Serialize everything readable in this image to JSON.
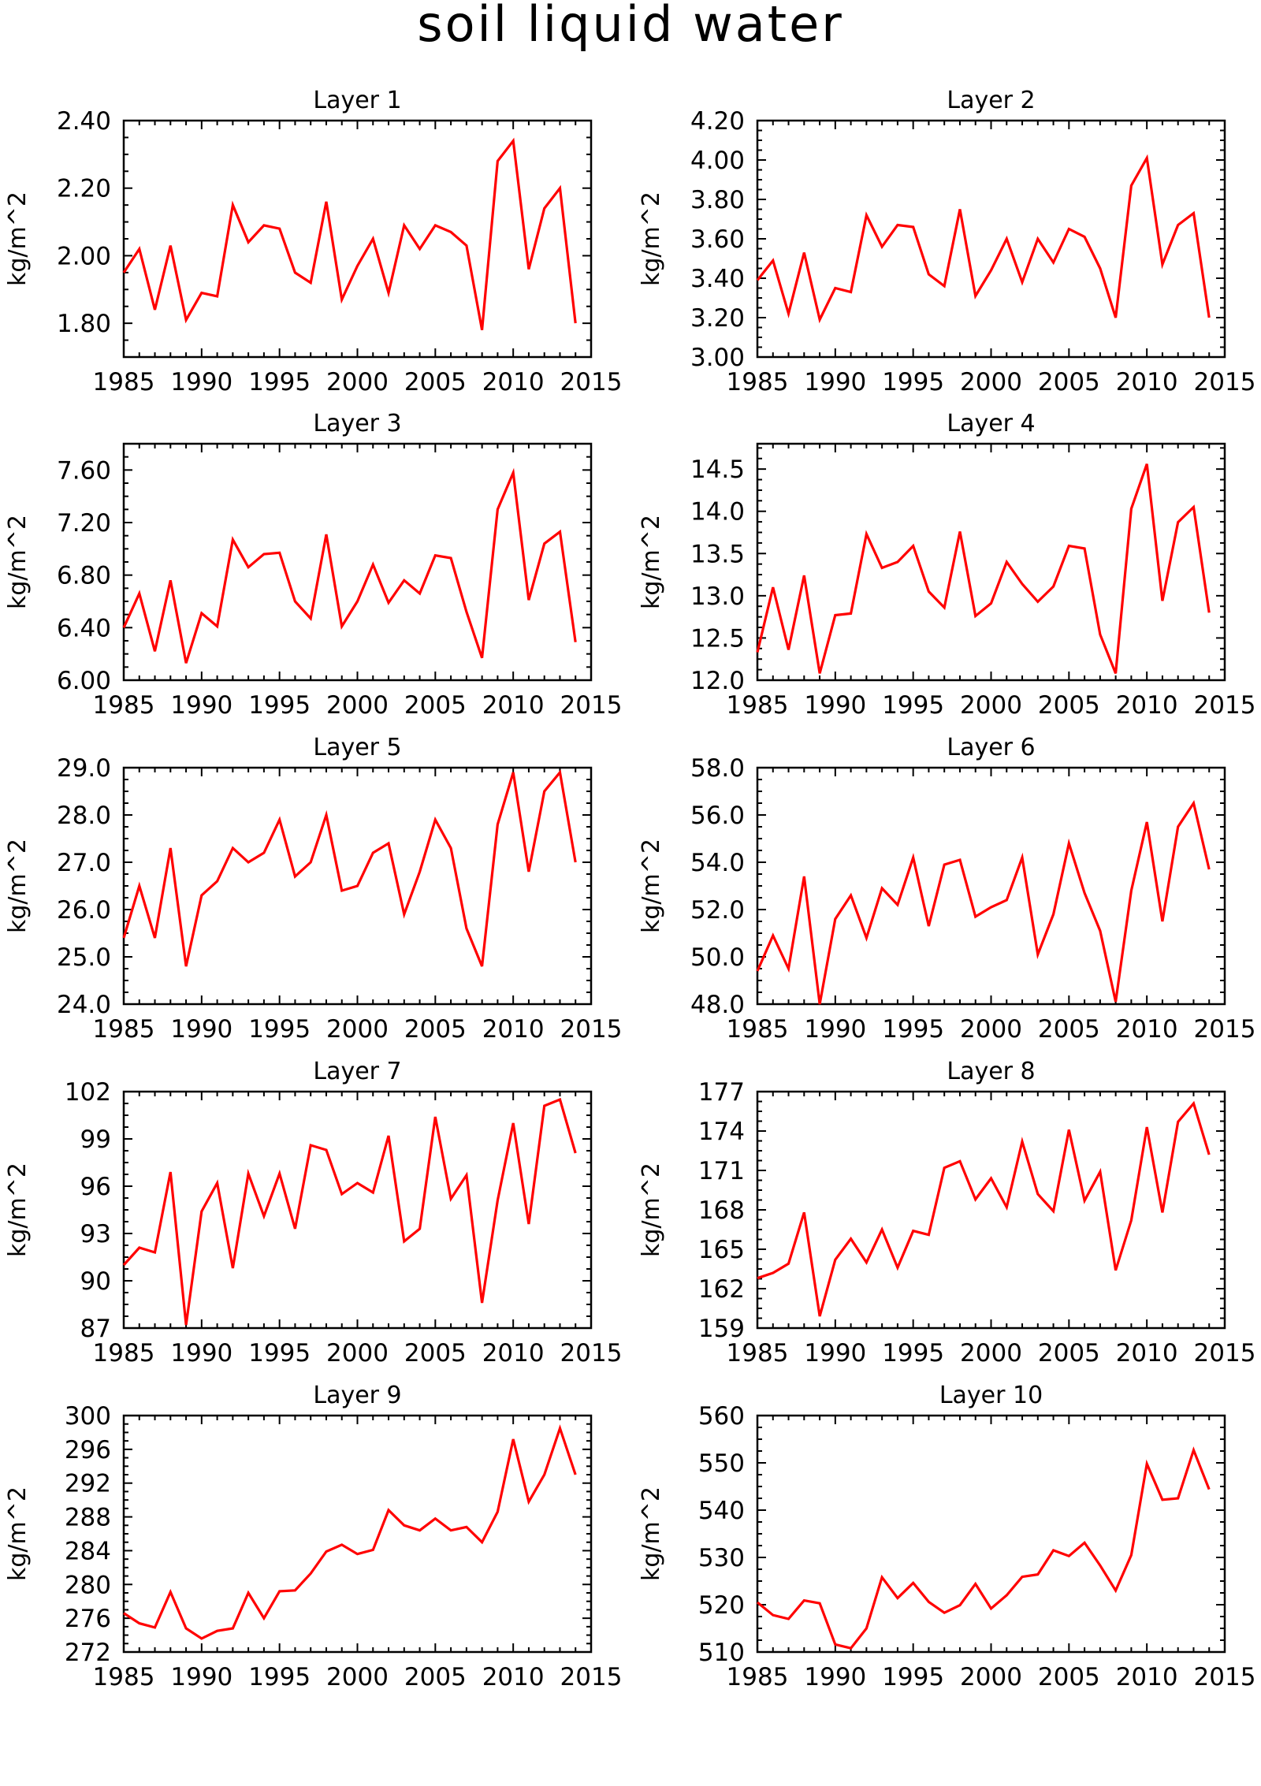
{
  "title": "soil liquid water",
  "colors": {
    "line": "#ff0000",
    "axes": "#000000",
    "background": "#ffffff"
  },
  "chart_data": [
    {
      "type": "line",
      "title": "Layer 1",
      "xlabel": "",
      "ylabel": "kg/m^2",
      "xlim": [
        1985,
        2015
      ],
      "ylim": [
        1.7,
        2.4
      ],
      "xticks": [
        "1985",
        "1990",
        "1995",
        "2000",
        "2005",
        "2010",
        "2015"
      ],
      "yticks": [
        "1.80",
        "2.00",
        "2.20",
        "2.40"
      ],
      "x": [
        1985,
        1986,
        1987,
        1988,
        1989,
        1990,
        1991,
        1992,
        1993,
        1994,
        1995,
        1996,
        1997,
        1998,
        1999,
        2000,
        2001,
        2002,
        2003,
        2004,
        2005,
        2006,
        2007,
        2008,
        2009,
        2010,
        2011,
        2012,
        2013,
        2014
      ],
      "values": [
        1.95,
        2.02,
        1.84,
        2.03,
        1.81,
        1.89,
        1.88,
        2.15,
        2.04,
        2.09,
        2.08,
        1.95,
        1.92,
        2.16,
        1.87,
        1.97,
        2.05,
        1.89,
        2.09,
        2.02,
        2.09,
        2.07,
        2.03,
        1.78,
        2.28,
        2.34,
        1.96,
        2.14,
        2.2,
        1.8
      ]
    },
    {
      "type": "line",
      "title": "Layer 2",
      "xlabel": "",
      "ylabel": "kg/m^2",
      "xlim": [
        1985,
        2015
      ],
      "ylim": [
        3.0,
        4.2
      ],
      "xticks": [
        "1985",
        "1990",
        "1995",
        "2000",
        "2005",
        "2010",
        "2015"
      ],
      "yticks": [
        "3.00",
        "3.20",
        "3.40",
        "3.60",
        "3.80",
        "4.00",
        "4.20"
      ],
      "x": [
        1985,
        1986,
        1987,
        1988,
        1989,
        1990,
        1991,
        1992,
        1993,
        1994,
        1995,
        1996,
        1997,
        1998,
        1999,
        2000,
        2001,
        2002,
        2003,
        2004,
        2005,
        2006,
        2007,
        2008,
        2009,
        2010,
        2011,
        2012,
        2013,
        2014
      ],
      "values": [
        3.39,
        3.49,
        3.22,
        3.53,
        3.19,
        3.35,
        3.33,
        3.72,
        3.56,
        3.67,
        3.66,
        3.42,
        3.36,
        3.75,
        3.31,
        3.44,
        3.6,
        3.38,
        3.6,
        3.48,
        3.65,
        3.61,
        3.45,
        3.2,
        3.87,
        4.01,
        3.47,
        3.67,
        3.73,
        3.2
      ]
    },
    {
      "type": "line",
      "title": "Layer 3",
      "xlabel": "",
      "ylabel": "kg/m^2",
      "xlim": [
        1985,
        2015
      ],
      "ylim": [
        6.0,
        7.8
      ],
      "xticks": [
        "1985",
        "1990",
        "1995",
        "2000",
        "2005",
        "2010",
        "2015"
      ],
      "yticks": [
        "6.00",
        "6.40",
        "6.80",
        "7.20",
        "7.60"
      ],
      "x": [
        1985,
        1986,
        1987,
        1988,
        1989,
        1990,
        1991,
        1992,
        1993,
        1994,
        1995,
        1996,
        1997,
        1998,
        1999,
        2000,
        2001,
        2002,
        2003,
        2004,
        2005,
        2006,
        2007,
        2008,
        2009,
        2010,
        2011,
        2012,
        2013,
        2014
      ],
      "values": [
        6.4,
        6.66,
        6.22,
        6.76,
        6.13,
        6.51,
        6.41,
        7.07,
        6.86,
        6.96,
        6.97,
        6.6,
        6.47,
        7.11,
        6.41,
        6.6,
        6.88,
        6.59,
        6.76,
        6.66,
        6.95,
        6.93,
        6.52,
        6.17,
        7.3,
        7.58,
        6.61,
        7.04,
        7.13,
        6.29
      ]
    },
    {
      "type": "line",
      "title": "Layer 4",
      "xlabel": "",
      "ylabel": "kg/m^2",
      "xlim": [
        1985,
        2015
      ],
      "ylim": [
        12.0,
        14.8
      ],
      "xticks": [
        "1985",
        "1990",
        "1995",
        "2000",
        "2005",
        "2010",
        "2015"
      ],
      "yticks": [
        "12.0",
        "12.5",
        "13.0",
        "13.5",
        "14.0",
        "14.5"
      ],
      "x": [
        1985,
        1986,
        1987,
        1988,
        1989,
        1990,
        1991,
        1992,
        1993,
        1994,
        1995,
        1996,
        1997,
        1998,
        1999,
        2000,
        2001,
        2002,
        2003,
        2004,
        2005,
        2006,
        2007,
        2008,
        2009,
        2010,
        2011,
        2012,
        2013,
        2014
      ],
      "values": [
        12.33,
        13.1,
        12.36,
        13.24,
        12.08,
        12.77,
        12.79,
        13.73,
        13.33,
        13.4,
        13.59,
        13.05,
        12.86,
        13.76,
        12.76,
        12.91,
        13.4,
        13.14,
        12.93,
        13.11,
        13.59,
        13.56,
        12.54,
        12.08,
        14.03,
        14.56,
        12.94,
        13.87,
        14.05,
        12.8
      ]
    },
    {
      "type": "line",
      "title": "Layer 5",
      "xlabel": "",
      "ylabel": "kg/m^2",
      "xlim": [
        1985,
        2015
      ],
      "ylim": [
        24.0,
        29.0
      ],
      "xticks": [
        "1985",
        "1990",
        "1995",
        "2000",
        "2005",
        "2010",
        "2015"
      ],
      "yticks": [
        "24.0",
        "25.0",
        "26.0",
        "27.0",
        "28.0",
        "29.0"
      ],
      "x": [
        1985,
        1986,
        1987,
        1988,
        1989,
        1990,
        1991,
        1992,
        1993,
        1994,
        1995,
        1996,
        1997,
        1998,
        1999,
        2000,
        2001,
        2002,
        2003,
        2004,
        2005,
        2006,
        2007,
        2008,
        2009,
        2010,
        2011,
        2012,
        2013,
        2014
      ],
      "values": [
        25.4,
        26.5,
        25.4,
        27.3,
        24.8,
        26.3,
        26.6,
        27.3,
        27.0,
        27.2,
        27.9,
        26.7,
        27.0,
        28.0,
        26.4,
        26.5,
        27.2,
        27.4,
        25.9,
        26.8,
        27.9,
        27.3,
        25.6,
        24.8,
        27.8,
        28.9,
        26.8,
        28.5,
        28.9,
        27.0
      ]
    },
    {
      "type": "line",
      "title": "Layer 6",
      "xlabel": "",
      "ylabel": "kg/m^2",
      "xlim": [
        1985,
        2015
      ],
      "ylim": [
        48.0,
        58.0
      ],
      "xticks": [
        "1985",
        "1990",
        "1995",
        "2000",
        "2005",
        "2010",
        "2015"
      ],
      "yticks": [
        "48.0",
        "50.0",
        "52.0",
        "54.0",
        "56.0",
        "58.0"
      ],
      "x": [
        1985,
        1986,
        1987,
        1988,
        1989,
        1990,
        1991,
        1992,
        1993,
        1994,
        1995,
        1996,
        1997,
        1998,
        1999,
        2000,
        2001,
        2002,
        2003,
        2004,
        2005,
        2006,
        2007,
        2008,
        2009,
        2010,
        2011,
        2012,
        2013,
        2014
      ],
      "values": [
        49.4,
        50.9,
        49.5,
        53.4,
        48.0,
        51.6,
        52.6,
        50.8,
        52.9,
        52.2,
        54.2,
        51.3,
        53.9,
        54.1,
        51.7,
        52.1,
        52.4,
        54.2,
        50.1,
        51.8,
        54.8,
        52.7,
        51.1,
        48.1,
        52.8,
        55.7,
        51.5,
        55.5,
        56.5,
        53.7
      ]
    },
    {
      "type": "line",
      "title": "Layer 7",
      "xlabel": "",
      "ylabel": "kg/m^2",
      "xlim": [
        1985,
        2015
      ],
      "ylim": [
        87,
        102
      ],
      "xticks": [
        "1985",
        "1990",
        "1995",
        "2000",
        "2005",
        "2010",
        "2015"
      ],
      "yticks": [
        "87",
        "90",
        "93",
        "96",
        "99",
        "102"
      ],
      "x": [
        1985,
        1986,
        1987,
        1988,
        1989,
        1990,
        1991,
        1992,
        1993,
        1994,
        1995,
        1996,
        1997,
        1998,
        1999,
        2000,
        2001,
        2002,
        2003,
        2004,
        2005,
        2006,
        2007,
        2008,
        2009,
        2010,
        2011,
        2012,
        2013,
        2014
      ],
      "values": [
        91.0,
        92.1,
        91.8,
        96.9,
        87.2,
        94.4,
        96.2,
        90.8,
        96.8,
        94.1,
        96.8,
        93.3,
        98.6,
        98.3,
        95.5,
        96.2,
        95.6,
        99.2,
        92.5,
        93.3,
        100.4,
        95.2,
        96.7,
        88.6,
        95.1,
        100.0,
        93.6,
        101.1,
        101.5,
        98.1
      ]
    },
    {
      "type": "line",
      "title": "Layer 8",
      "xlabel": "",
      "ylabel": "kg/m^2",
      "xlim": [
        1985,
        2015
      ],
      "ylim": [
        159,
        177
      ],
      "xticks": [
        "1985",
        "1990",
        "1995",
        "2000",
        "2005",
        "2010",
        "2015"
      ],
      "yticks": [
        "159",
        "162",
        "165",
        "168",
        "171",
        "174",
        "177"
      ],
      "x": [
        1985,
        1986,
        1987,
        1988,
        1989,
        1990,
        1991,
        1992,
        1993,
        1994,
        1995,
        1996,
        1997,
        1998,
        1999,
        2000,
        2001,
        2002,
        2003,
        2004,
        2005,
        2006,
        2007,
        2008,
        2009,
        2010,
        2011,
        2012,
        2013,
        2014
      ],
      "values": [
        162.8,
        163.2,
        163.9,
        167.8,
        159.9,
        164.2,
        165.8,
        164.0,
        166.5,
        163.6,
        166.4,
        166.1,
        171.2,
        171.7,
        168.8,
        170.4,
        168.2,
        173.2,
        169.2,
        167.9,
        174.1,
        168.7,
        170.9,
        163.4,
        167.2,
        174.3,
        167.8,
        174.7,
        176.1,
        172.2
      ]
    },
    {
      "type": "line",
      "title": "Layer 9",
      "xlabel": "",
      "ylabel": "kg/m^2",
      "xlim": [
        1985,
        2015
      ],
      "ylim": [
        272,
        300
      ],
      "xticks": [
        "1985",
        "1990",
        "1995",
        "2000",
        "2005",
        "2010",
        "2015"
      ],
      "yticks": [
        "272",
        "276",
        "280",
        "284",
        "288",
        "292",
        "296",
        "300"
      ],
      "x": [
        1985,
        1986,
        1987,
        1988,
        1989,
        1990,
        1991,
        1992,
        1993,
        1994,
        1995,
        1996,
        1997,
        1998,
        1999,
        2000,
        2001,
        2002,
        2003,
        2004,
        2005,
        2006,
        2007,
        2008,
        2009,
        2010,
        2011,
        2012,
        2013,
        2014
      ],
      "values": [
        276.6,
        275.4,
        274.9,
        279.1,
        274.8,
        273.6,
        274.5,
        274.8,
        279.0,
        276.0,
        279.2,
        279.3,
        281.3,
        283.9,
        284.7,
        283.6,
        284.1,
        288.8,
        287.0,
        286.4,
        287.8,
        286.4,
        286.8,
        285.0,
        288.6,
        297.2,
        289.8,
        293.0,
        298.5,
        293.0
      ]
    },
    {
      "type": "line",
      "title": "Layer 10",
      "xlabel": "",
      "ylabel": "kg/m^2",
      "xlim": [
        1985,
        2015
      ],
      "ylim": [
        510,
        560
      ],
      "xticks": [
        "1985",
        "1990",
        "1995",
        "2000",
        "2005",
        "2010",
        "2015"
      ],
      "yticks": [
        "510",
        "520",
        "530",
        "540",
        "550",
        "560"
      ],
      "x": [
        1985,
        1986,
        1987,
        1988,
        1989,
        1990,
        1991,
        1992,
        1993,
        1994,
        1995,
        1996,
        1997,
        1998,
        1999,
        2000,
        2001,
        2002,
        2003,
        2004,
        2005,
        2006,
        2007,
        2008,
        2009,
        2010,
        2011,
        2012,
        2013,
        2014
      ],
      "values": [
        520.5,
        517.8,
        517.0,
        520.9,
        520.3,
        511.6,
        510.8,
        515.0,
        525.8,
        521.4,
        524.6,
        520.6,
        518.3,
        519.9,
        524.4,
        519.2,
        522.0,
        525.9,
        526.4,
        531.5,
        530.3,
        533.1,
        528.3,
        523.0,
        530.5,
        549.8,
        542.2,
        542.5,
        552.7,
        544.4
      ]
    }
  ]
}
